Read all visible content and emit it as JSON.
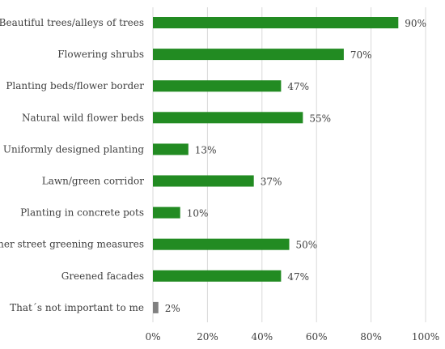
{
  "chart_data": {
    "type": "bar",
    "orientation": "horizontal",
    "title": "",
    "xlabel": "",
    "ylabel": "",
    "xlim": [
      0,
      100
    ],
    "grid": true,
    "categories": [
      "Beautiful trees/alleys of trees",
      "Flowering shrubs",
      "Planting beds/flower border",
      "Natural wild flower beds",
      "Uniformly designed planting",
      "Lawn/green corridor",
      "Planting in concrete pots",
      "Other street greening measures",
      "Greened facades",
      "That´s not important to me"
    ],
    "values": [
      90,
      70,
      47,
      55,
      13,
      37,
      10,
      50,
      47,
      2
    ],
    "value_labels": [
      "90%",
      "70%",
      "47%",
      "55%",
      "13%",
      "37%",
      "10%",
      "50%",
      "47%",
      "2%"
    ],
    "bar_colors": [
      "#228b22",
      "#228b22",
      "#228b22",
      "#228b22",
      "#228b22",
      "#228b22",
      "#228b22",
      "#228b22",
      "#228b22",
      "#808080"
    ],
    "x_ticks": [
      0,
      20,
      40,
      60,
      80,
      100
    ],
    "x_tick_labels": [
      "0%",
      "20%",
      "40%",
      "60%",
      "80%",
      "100%"
    ]
  }
}
